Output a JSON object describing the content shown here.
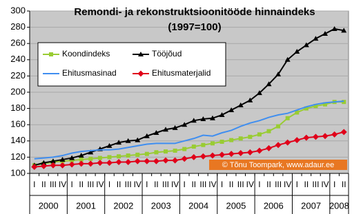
{
  "chart_data": {
    "type": "line",
    "title": "Remondi- ja rekonstruktsioonitööde hinnaindeks",
    "subtitle": "(1997=100)",
    "annotation": "© Tõnu Toompark, www.adaur.ee",
    "categories": [
      "I",
      "II",
      "III",
      "IV",
      "I",
      "II",
      "III",
      "IV",
      "I",
      "II",
      "III",
      "IV",
      "I",
      "II",
      "III",
      "IV",
      "I",
      "II",
      "III",
      "IV",
      "I",
      "II",
      "III",
      "IV",
      "I",
      "II",
      "III",
      "IV",
      "I",
      "II",
      "III",
      "IV",
      "I",
      "II"
    ],
    "groups": [
      "2000",
      "2001",
      "2002",
      "2003",
      "2004",
      "2005",
      "2006",
      "2007",
      "2008"
    ],
    "ylim": [
      100,
      300
    ],
    "yticks": [
      100,
      120,
      140,
      160,
      180,
      200,
      220,
      240,
      260,
      280,
      300
    ],
    "grid": true,
    "series": [
      {
        "name": "Koondindeks",
        "color": "#99cc33",
        "marker": "square",
        "values": [
          110,
          112,
          114,
          115,
          116,
          117,
          118,
          119,
          120,
          121,
          122,
          123,
          124,
          126,
          127,
          128,
          130,
          133,
          135,
          137,
          139,
          141,
          143,
          145,
          148,
          152,
          158,
          168,
          175,
          180,
          183,
          185,
          188,
          188
        ]
      },
      {
        "name": "Tööjõud",
        "color": "#000000",
        "marker": "triangle",
        "values": [
          110,
          113,
          115,
          117,
          119,
          122,
          126,
          130,
          134,
          138,
          140,
          141,
          146,
          150,
          154,
          156,
          160,
          165,
          167,
          168,
          172,
          178,
          184,
          190,
          199,
          210,
          222,
          240,
          250,
          258,
          266,
          272,
          278,
          276
        ]
      },
      {
        "name": "Ehitusmasinad",
        "color": "#3f8ef0",
        "marker": "none",
        "values": [
          118,
          119,
          120,
          122,
          125,
          127,
          128,
          129,
          129,
          130,
          132,
          134,
          136,
          137,
          137,
          137,
          140,
          143,
          147,
          146,
          150,
          153,
          158,
          162,
          165,
          169,
          172,
          174,
          178,
          182,
          185,
          187,
          188,
          189
        ]
      },
      {
        "name": "Ehitusmaterjalid",
        "color": "#e0001a",
        "marker": "diamond",
        "values": [
          108,
          109,
          110,
          110,
          111,
          112,
          112,
          113,
          113,
          114,
          114,
          115,
          115,
          115,
          116,
          116,
          118,
          120,
          121,
          122,
          123,
          124,
          125,
          126,
          128,
          131,
          135,
          138,
          141,
          144,
          145,
          146,
          148,
          151
        ]
      }
    ]
  }
}
